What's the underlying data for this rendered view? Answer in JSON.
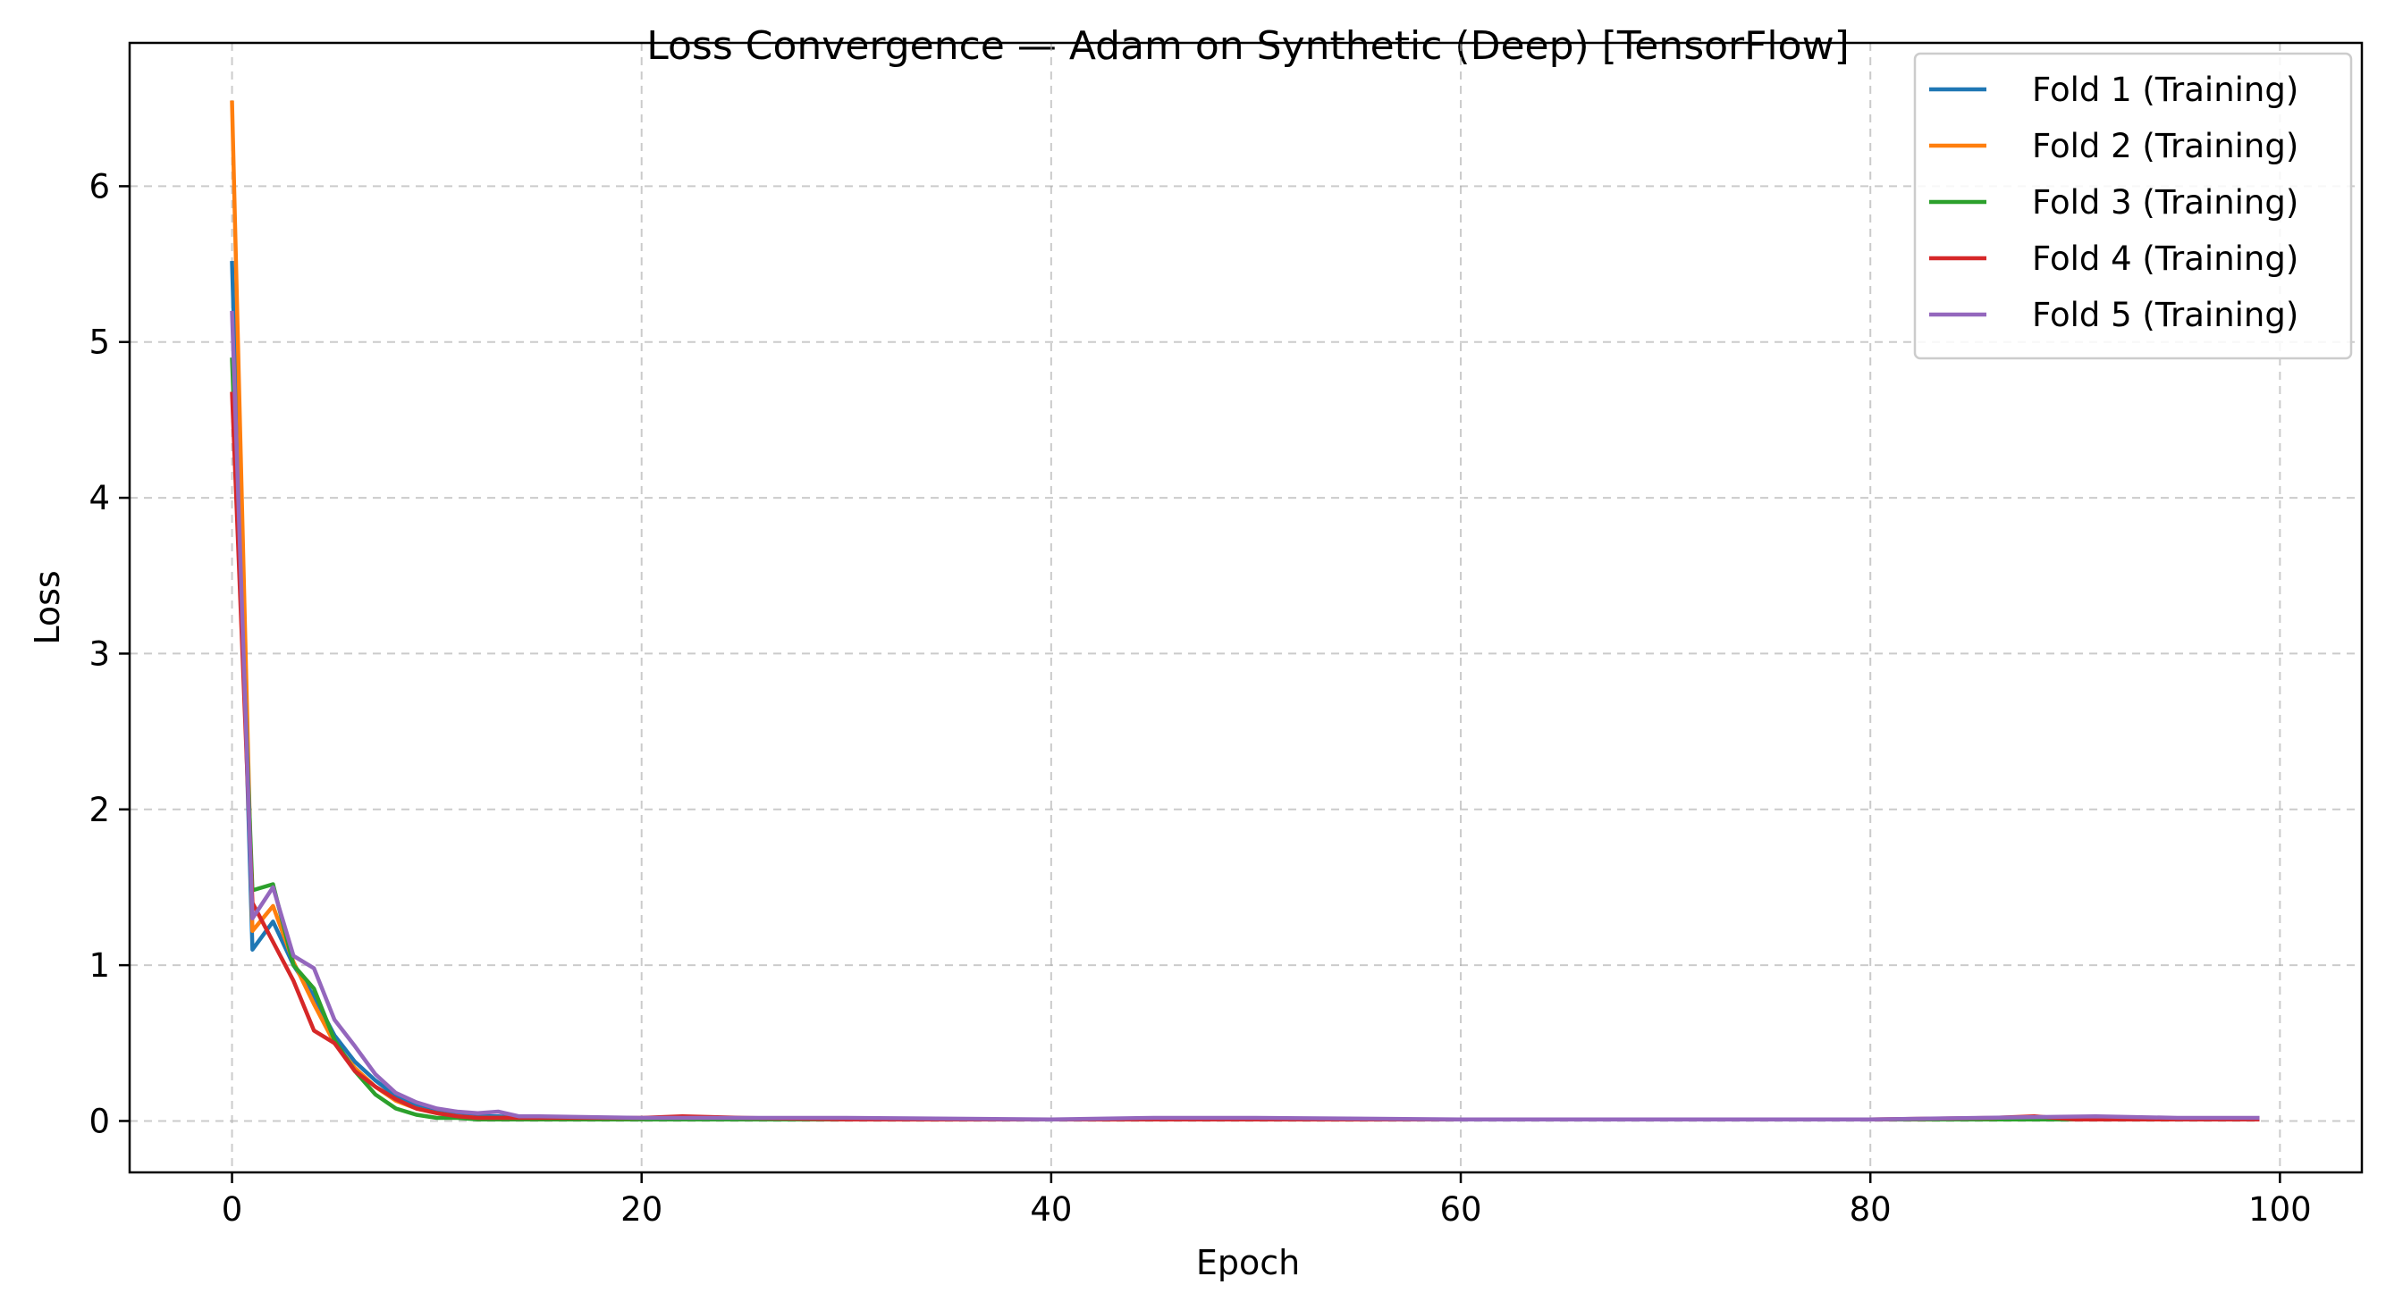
{
  "chart_data": {
    "type": "line",
    "title": "Loss Convergence — Adam on Synthetic (Deep) [TensorFlow]",
    "xlabel": "Epoch",
    "ylabel": "Loss",
    "xlim": [
      -5,
      104
    ],
    "ylim": [
      -0.33,
      6.92
    ],
    "xticks": [
      0,
      20,
      40,
      60,
      80,
      100
    ],
    "yticks": [
      0,
      1,
      2,
      3,
      4,
      5,
      6
    ],
    "grid": true,
    "legend_position": "top-right",
    "series": [
      {
        "name": "Fold 1 (Training)",
        "color": "#1f77b4",
        "points": [
          [
            0,
            5.52
          ],
          [
            1,
            1.1
          ],
          [
            2,
            1.28
          ],
          [
            3,
            1.0
          ],
          [
            4,
            0.8
          ],
          [
            5,
            0.55
          ],
          [
            6,
            0.38
          ],
          [
            7,
            0.26
          ],
          [
            8,
            0.16
          ],
          [
            9,
            0.1
          ],
          [
            10,
            0.06
          ],
          [
            11,
            0.04
          ],
          [
            12,
            0.03
          ],
          [
            13,
            0.03
          ],
          [
            14,
            0.02
          ],
          [
            15,
            0.02
          ],
          [
            20,
            0.01
          ],
          [
            30,
            0.01
          ],
          [
            40,
            0.01
          ],
          [
            50,
            0.01
          ],
          [
            60,
            0.01
          ],
          [
            70,
            0.01
          ],
          [
            80,
            0.01
          ],
          [
            90,
            0.01
          ],
          [
            99,
            0.01
          ]
        ]
      },
      {
        "name": "Fold 2 (Training)",
        "color": "#ff7f0e",
        "points": [
          [
            0,
            6.55
          ],
          [
            1,
            1.22
          ],
          [
            2,
            1.38
          ],
          [
            3,
            1.02
          ],
          [
            4,
            0.75
          ],
          [
            5,
            0.5
          ],
          [
            6,
            0.34
          ],
          [
            7,
            0.22
          ],
          [
            8,
            0.13
          ],
          [
            9,
            0.08
          ],
          [
            10,
            0.05
          ],
          [
            11,
            0.03
          ],
          [
            12,
            0.02
          ],
          [
            13,
            0.02
          ],
          [
            15,
            0.02
          ],
          [
            20,
            0.01
          ],
          [
            30,
            0.01
          ],
          [
            40,
            0.01
          ],
          [
            50,
            0.01
          ],
          [
            60,
            0.01
          ],
          [
            70,
            0.01
          ],
          [
            80,
            0.01
          ],
          [
            90,
            0.01
          ],
          [
            94,
            0.02
          ],
          [
            99,
            0.01
          ]
        ]
      },
      {
        "name": "Fold 3 (Training)",
        "color": "#2ca02c",
        "points": [
          [
            0,
            4.9
          ],
          [
            1,
            1.48
          ],
          [
            2,
            1.52
          ],
          [
            3,
            1.0
          ],
          [
            4,
            0.85
          ],
          [
            5,
            0.52
          ],
          [
            6,
            0.32
          ],
          [
            7,
            0.17
          ],
          [
            8,
            0.08
          ],
          [
            9,
            0.04
          ],
          [
            10,
            0.02
          ],
          [
            11,
            0.02
          ],
          [
            12,
            0.01
          ],
          [
            15,
            0.01
          ],
          [
            20,
            0.01
          ],
          [
            30,
            0.01
          ],
          [
            40,
            0.01
          ],
          [
            50,
            0.01
          ],
          [
            60,
            0.01
          ],
          [
            70,
            0.01
          ],
          [
            80,
            0.01
          ],
          [
            90,
            0.01
          ],
          [
            99,
            0.01
          ]
        ]
      },
      {
        "name": "Fold 4 (Training)",
        "color": "#d62728",
        "points": [
          [
            0,
            4.68
          ],
          [
            1,
            1.4
          ],
          [
            2,
            1.15
          ],
          [
            3,
            0.9
          ],
          [
            4,
            0.58
          ],
          [
            5,
            0.5
          ],
          [
            6,
            0.32
          ],
          [
            7,
            0.22
          ],
          [
            8,
            0.14
          ],
          [
            9,
            0.08
          ],
          [
            10,
            0.05
          ],
          [
            11,
            0.03
          ],
          [
            12,
            0.02
          ],
          [
            15,
            0.02
          ],
          [
            20,
            0.02
          ],
          [
            22,
            0.03
          ],
          [
            25,
            0.02
          ],
          [
            30,
            0.01
          ],
          [
            40,
            0.01
          ],
          [
            50,
            0.01
          ],
          [
            60,
            0.01
          ],
          [
            70,
            0.01
          ],
          [
            80,
            0.01
          ],
          [
            86,
            0.02
          ],
          [
            88,
            0.03
          ],
          [
            90,
            0.01
          ],
          [
            99,
            0.01
          ]
        ]
      },
      {
        "name": "Fold 5 (Training)",
        "color": "#9467bd",
        "points": [
          [
            0,
            5.2
          ],
          [
            1,
            1.3
          ],
          [
            2,
            1.5
          ],
          [
            3,
            1.06
          ],
          [
            4,
            0.98
          ],
          [
            5,
            0.65
          ],
          [
            6,
            0.48
          ],
          [
            7,
            0.3
          ],
          [
            8,
            0.18
          ],
          [
            9,
            0.12
          ],
          [
            10,
            0.08
          ],
          [
            11,
            0.06
          ],
          [
            12,
            0.05
          ],
          [
            13,
            0.06
          ],
          [
            14,
            0.03
          ],
          [
            15,
            0.03
          ],
          [
            20,
            0.02
          ],
          [
            30,
            0.02
          ],
          [
            40,
            0.01
          ],
          [
            45,
            0.02
          ],
          [
            50,
            0.02
          ],
          [
            60,
            0.01
          ],
          [
            70,
            0.01
          ],
          [
            80,
            0.01
          ],
          [
            91,
            0.03
          ],
          [
            95,
            0.02
          ],
          [
            99,
            0.02
          ]
        ]
      }
    ]
  }
}
